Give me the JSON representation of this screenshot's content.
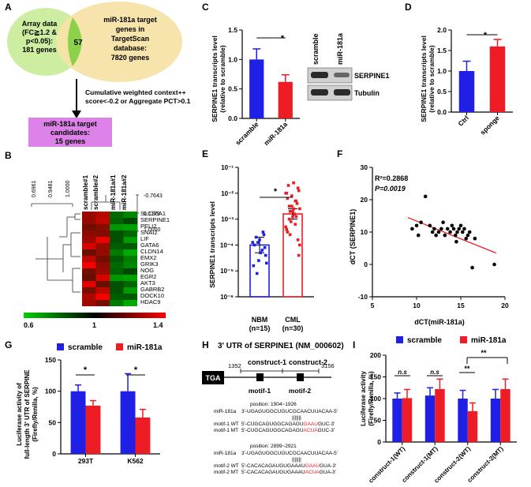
{
  "panels": {
    "A": {
      "label": "A",
      "array_circle": [
        "Array data",
        "(FC≧1.2 &",
        "p<0.05):",
        "181 genes"
      ],
      "overlap": "57",
      "target_circle": [
        "miR-181a target",
        "genes in",
        "TargetScan",
        "database:",
        "7820 genes"
      ],
      "criteria": [
        "Cumulative  weighted context++",
        "score<-0.2 or Aggregate PCT>0.1"
      ],
      "candidates": [
        "miR-181a target",
        "candidates:",
        "15 genes"
      ],
      "colors": {
        "array": "#cdeea0",
        "overlap": "#8bd14a",
        "target": "#f6e3a8",
        "box": "#dc82e8"
      }
    },
    "B": {
      "label": "B",
      "columns": [
        "scramble#1",
        "scramble#2",
        "miR-181a#1",
        "miR-181a#2"
      ],
      "row_tree_ticks": [
        "0.6961",
        "0.9481",
        "1.0000"
      ],
      "col_tree_ticks": [
        "-0.7643",
        "0.1179",
        "1.0000"
      ],
      "genes": [
        "SLC36A1",
        "SERPINE1",
        "PELI2",
        "SNAI2",
        "LIF",
        "GATA6",
        "CLDN14",
        "EMX2",
        "GRIK3",
        "NOG",
        "EGR2",
        "AKT3",
        "GABRB2",
        "DOCK10",
        "HDAC9"
      ],
      "scale_labels": [
        "0.6",
        "1",
        "1.4"
      ]
    },
    "C": {
      "label": "C",
      "ylabel": [
        "SERPINE1 transcripts level",
        "(relative to scramble)"
      ],
      "blot_cols": [
        "scramble",
        "miR-181a"
      ],
      "blot_rows": [
        "SERPINE1",
        "Tubulin"
      ],
      "sig": "*"
    },
    "D": {
      "label": "D",
      "ylabel": [
        "SERPINE1 transcripts level",
        "(relative to scramble)"
      ],
      "sig": "*"
    },
    "E": {
      "label": "E",
      "ylabel": "SERPINE1 transcripts level",
      "groups": [
        [
          "NBM",
          "(n=15)"
        ],
        [
          "CML",
          "(n=30)"
        ]
      ],
      "sig": "*"
    },
    "F": {
      "label": "F",
      "r2": "R²=0.2868",
      "p": "P=0.0019",
      "xlabel": "dCT(miR-181a)",
      "ylabel": "dCT (SERPINE1)"
    },
    "G": {
      "label": "G",
      "legend": [
        "scramble",
        "miR-181a"
      ],
      "ylabel": [
        "Luciferase activity of",
        "full-length 3' UTR of SERPINE",
        "(Firefly/Renilla, %)"
      ],
      "sig": [
        "*",
        "*"
      ]
    },
    "H": {
      "label": "H",
      "title": "3' UTR of SERPINE1 (NM_000602)",
      "tga": "TGA",
      "start": "1352",
      "end": "3156",
      "constructs": [
        "construct-1",
        "construct-2"
      ],
      "motifs": [
        "motif-1",
        "motif-2"
      ],
      "site1": {
        "position": "position: 1904~1926",
        "mirna_name": "miR-181a",
        "mirna_seq": "3'-UGAGUGGCUGUCGCAACUUACAA-5'",
        "bars": "|||||||",
        "wt_name": "motif-1 WT",
        "wt_a": "5'-CUGCAGUGGCAGAGU",
        "wt_b": "GAAU",
        "wt_c": "GUC-3'",
        "mt_name": "motif-1 MT",
        "mt_a": "5'-CUGCAGUGGCAGAGU",
        "mt_b": "ACUA",
        "mt_c": "GUC-3'"
      },
      "site2": {
        "position": "position: 2899~2921",
        "mirna_name": "miR-181a",
        "mirna_seq": "3'-UGAGUGGCUGUCGCAACUUACAA-5'",
        "bars": "|||||||",
        "wt_name": "motif-2 WT",
        "wt_a": "5'-CACACAGAUGUGAAAU",
        "wt_b": "GAAU",
        "wt_c": "GUA-3'",
        "mt_name": "motif-2 MT",
        "mt_a": "5'-CACACAGAUGUGAAAU",
        "mt_b": "ACUA",
        "mt_c": "GUA-3'"
      }
    },
    "I": {
      "label": "I",
      "legend": [
        "scramble",
        "miR-181a"
      ],
      "ylabel": [
        "Luciferase activity",
        "(Firefly/Renilla, %)"
      ],
      "sig": [
        "n.s",
        "n.s",
        "**",
        "**"
      ]
    }
  },
  "colors": {
    "blue": "#1f1fe6",
    "red": "#ee1c24",
    "mut": "#ee1c24"
  },
  "chart_data": [
    {
      "id": "C",
      "type": "bar",
      "categories": [
        "scramble",
        "miR-181a"
      ],
      "values": [
        1.0,
        0.62
      ],
      "errors": [
        0.18,
        0.12
      ],
      "colors": [
        "#1f1fe6",
        "#ee1c24"
      ],
      "ylim": [
        0,
        1.5
      ],
      "yticks": [
        "0.0",
        "0.5",
        "1.0",
        "1.5"
      ]
    },
    {
      "id": "D",
      "type": "bar",
      "categories": [
        "Ctrl",
        "sponge"
      ],
      "values": [
        1.0,
        1.6
      ],
      "errors": [
        0.24,
        0.17
      ],
      "colors": [
        "#1f1fe6",
        "#ee1c24"
      ],
      "ylim": [
        0,
        2
      ],
      "yticks": [
        "0.0",
        "0.5",
        "1.0",
        "1.5",
        "2.0"
      ]
    },
    {
      "id": "E",
      "type": "scatter",
      "log_range": [
        -6,
        -1
      ],
      "yticks": [
        "10⁻⁶",
        "10⁻⁵",
        "10⁻⁴",
        "10⁻³",
        "10⁻²",
        "10⁻¹"
      ],
      "bars": [
        -4.0,
        -2.8
      ],
      "errors": [
        [
          -4.3,
          -3.7
        ],
        [
          -3.0,
          -2.6
        ]
      ],
      "points": [
        [
          -3.9,
          -4.6,
          -4.1,
          -3.7,
          -4.2,
          -4.8,
          -3.8,
          -4.4,
          -5.1,
          -3.5,
          -4.0,
          -4.3,
          -4.7,
          -3.9,
          -3.6
        ],
        [
          -2.0,
          -2.5,
          -1.8,
          -3.0,
          -2.3,
          -3.4,
          -2.7,
          -1.9,
          -3.6,
          -2.9,
          -2.2,
          -2.6,
          -4.0,
          -3.1,
          -2.4,
          -1.7,
          -2.8,
          -3.3,
          -2.1,
          -3.8,
          -2.5,
          -3.2,
          -2.0,
          -2.9,
          -4.4,
          -2.7,
          -2.3,
          -3.5,
          -1.6,
          -2.6
        ]
      ]
    },
    {
      "id": "F",
      "type": "scatter",
      "xlim": [
        5,
        20
      ],
      "ylim": [
        -10,
        30
      ],
      "xticks": [
        "5",
        "10",
        "15",
        "20"
      ],
      "yticks": [
        "-10",
        "0",
        "10",
        "20",
        "30"
      ],
      "x": [
        9.5,
        10,
        10.2,
        11,
        11.5,
        11.8,
        12,
        12.5,
        12.8,
        13,
        13.2,
        13.5,
        13.8,
        14,
        14.2,
        14.4,
        14.6,
        14.8,
        15,
        15.2,
        15.4,
        15.6,
        15.8,
        16,
        16.3,
        16.6,
        10.5,
        12.2,
        14.5,
        18.8
      ],
      "y": [
        11,
        12,
        9,
        21,
        12,
        10,
        11,
        10,
        11,
        13,
        9,
        11,
        10,
        12,
        11,
        9,
        10,
        11,
        12,
        10,
        11,
        8,
        9,
        10,
        -1,
        8,
        13,
        9,
        7,
        0
      ],
      "fit": {
        "x0": 9,
        "y0": 14.5,
        "x1": 19,
        "y1": 3.5
      }
    },
    {
      "id": "G",
      "type": "bar",
      "categories": [
        "293T",
        "K562"
      ],
      "series": [
        {
          "name": "scramble",
          "values": [
            100,
            100
          ],
          "errors": [
            10,
            28
          ]
        },
        {
          "name": "miR-181a",
          "values": [
            77,
            58
          ],
          "errors": [
            8,
            13
          ]
        }
      ],
      "ylim": [
        0,
        150
      ],
      "yticks": [
        "0",
        "50",
        "100",
        "150"
      ]
    },
    {
      "id": "I",
      "type": "bar",
      "categories": [
        "construct-1(WT)",
        "construct-1(MT)",
        "construct-2(WT)",
        "construct-2(MT)"
      ],
      "series": [
        {
          "name": "scramble",
          "values": [
            100,
            107,
            100,
            100
          ],
          "errors": [
            13,
            18,
            19,
            21
          ]
        },
        {
          "name": "miR-181a",
          "values": [
            101,
            122,
            71,
            122
          ],
          "errors": [
            20,
            23,
            19,
            23
          ]
        }
      ],
      "ylim": [
        0,
        200
      ],
      "yticks": [
        "0",
        "50",
        "100",
        "150",
        "200"
      ]
    }
  ]
}
